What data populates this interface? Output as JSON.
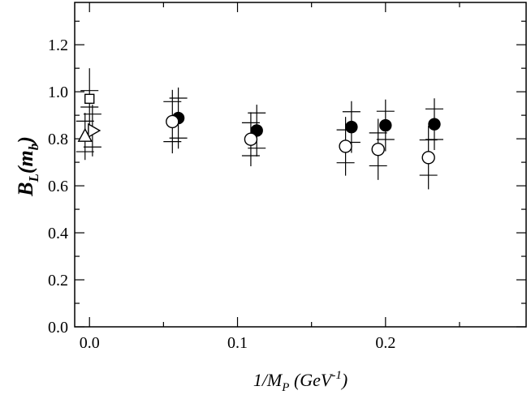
{
  "chart_data": {
    "type": "scatter",
    "xlabel": {
      "main": "1/M",
      "sub": "P",
      "unit_open": " (GeV",
      "sup": "-1",
      "unit_close": ")"
    },
    "ylabel": {
      "main": "B",
      "sub": "L",
      "arg": "(m",
      "arg_sub": "b",
      "arg_close": ")"
    },
    "xlim": [
      -0.01,
      0.295
    ],
    "ylim": [
      0.0,
      1.38
    ],
    "x_ticks": [
      {
        "value": 0.0,
        "label": "0.0"
      },
      {
        "value": 0.1,
        "label": "0.1"
      },
      {
        "value": 0.2,
        "label": "0.2"
      }
    ],
    "y_ticks": [
      {
        "value": 0.0,
        "label": "0.0"
      },
      {
        "value": 0.2,
        "label": "0.2"
      },
      {
        "value": 0.4,
        "label": "0.4"
      },
      {
        "value": 0.6,
        "label": "0.6"
      },
      {
        "value": 0.8,
        "label": "0.8"
      },
      {
        "value": 1.0,
        "label": "1.0"
      },
      {
        "value": 1.2,
        "label": "1.2"
      }
    ],
    "grid": false,
    "series": [
      {
        "marker": "filled-circle",
        "points": [
          {
            "x": 0.06,
            "y": 0.888,
            "err_stat": 0.085,
            "err_tot": 0.13
          },
          {
            "x": 0.113,
            "y": 0.835,
            "err_stat": 0.075,
            "err_tot": 0.11
          },
          {
            "x": 0.177,
            "y": 0.85,
            "err_stat": 0.065,
            "err_tot": 0.11
          },
          {
            "x": 0.2,
            "y": 0.857,
            "err_stat": 0.06,
            "err_tot": 0.11
          },
          {
            "x": 0.233,
            "y": 0.862,
            "err_stat": 0.065,
            "err_tot": 0.11
          }
        ]
      },
      {
        "marker": "open-circle",
        "points": [
          {
            "x": 0.056,
            "y": 0.873,
            "err_stat": 0.085,
            "err_tot": 0.135
          },
          {
            "x": 0.109,
            "y": 0.798,
            "err_stat": 0.07,
            "err_tot": 0.115
          },
          {
            "x": 0.173,
            "y": 0.768,
            "err_stat": 0.07,
            "err_tot": 0.125
          },
          {
            "x": 0.195,
            "y": 0.755,
            "err_stat": 0.07,
            "err_tot": 0.13
          },
          {
            "x": 0.229,
            "y": 0.72,
            "err_stat": 0.075,
            "err_tot": 0.135
          }
        ]
      },
      {
        "marker": "open-square",
        "points": [
          {
            "x": 0.0,
            "y": 0.97,
            "err_stat": 0.035,
            "err_tot": 0.13
          }
        ]
      },
      {
        "marker": "open-triangle-right",
        "points": [
          {
            "x": 0.002,
            "y": 0.835,
            "err_stat": 0.07,
            "err_tot": 0.11
          }
        ]
      },
      {
        "marker": "open-triangle-up",
        "points": [
          {
            "x": -0.003,
            "y": 0.81,
            "err_stat": 0.065,
            "err_tot": 0.1
          }
        ]
      }
    ]
  }
}
